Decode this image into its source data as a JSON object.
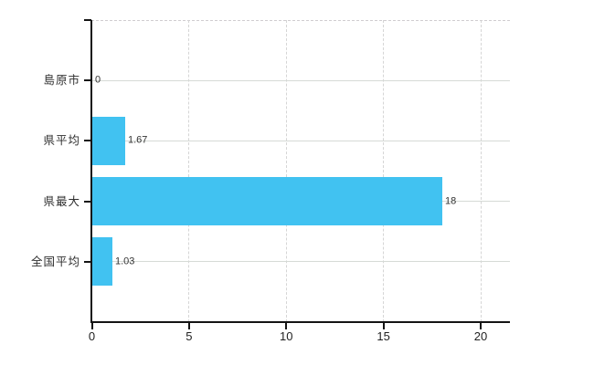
{
  "chart_data": {
    "type": "bar",
    "orientation": "horizontal",
    "title": "",
    "xlabel": "",
    "ylabel": "",
    "categories": [
      "島原市",
      "県平均",
      "県最大",
      "全国平均"
    ],
    "values": [
      0,
      1.67,
      18,
      1.03
    ],
    "value_labels": [
      "0",
      "1.67",
      "18",
      "1.03"
    ],
    "x_ticks": [
      0,
      5,
      10,
      15,
      20
    ],
    "x_tick_labels": [
      "0",
      "5",
      "10",
      "15",
      "20"
    ],
    "xlim": [
      0,
      21.5
    ],
    "grid": true,
    "legend": false
  },
  "colors": {
    "background": "#ffffff",
    "bar": "#41c2f1",
    "h_gridline": "#d6dad6",
    "v_gridline": "#d5d5d5",
    "top_border": "#d0cdd0",
    "axis": "#141414",
    "category_text": "#2e2e2e",
    "tick_text": "#222222",
    "value_text": "#333333"
  }
}
